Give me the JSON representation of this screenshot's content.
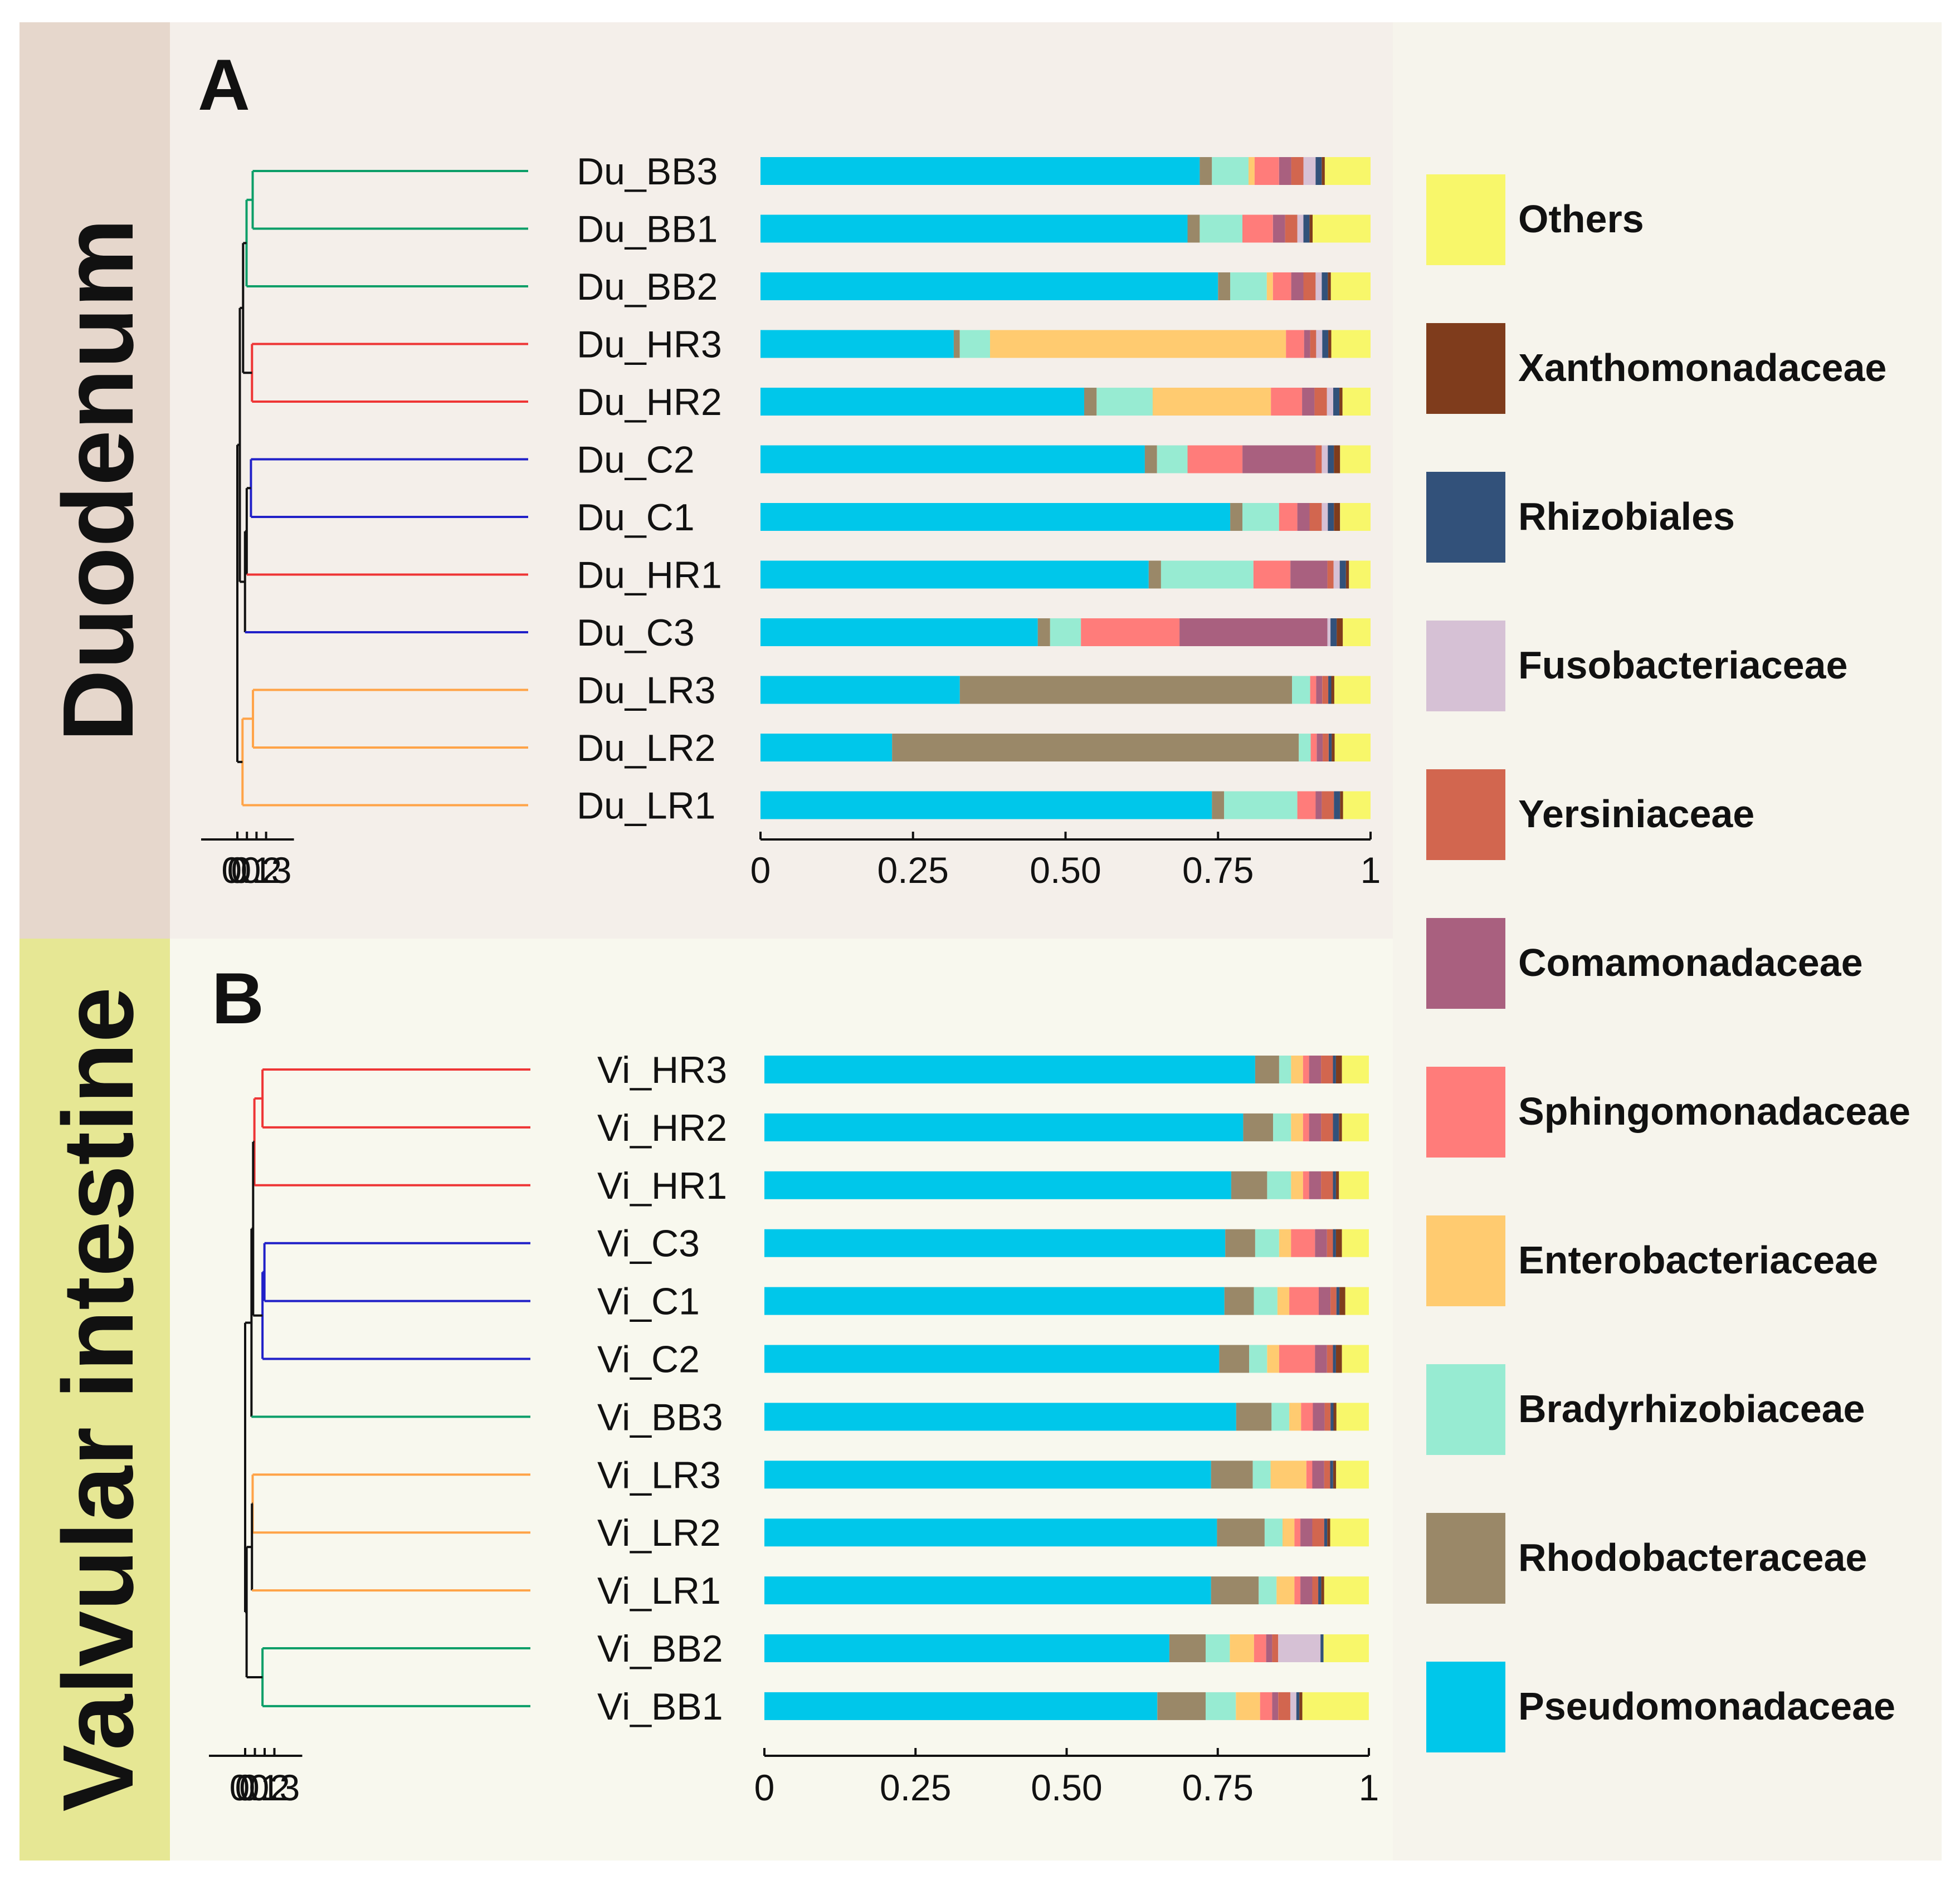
{
  "colors": {
    "Pseudomonadaceae": "#00C7EA",
    "Rhodobacteraceae": "#9A8868",
    "Bradyrhizobiaceae": "#97EBD2",
    "Enterobacteriaceae": "#FFCB70",
    "Sphingomonadaceae": "#FF7C7A",
    "Comamonadaceae": "#A9607F",
    "Yersiniaceae": "#D2664F",
    "Fusobacteriaceae": "#D6C1D5",
    "Rhizobiales": "#32517A",
    "Xanthomonadaceae": "#7F3C1C",
    "Others": "#F8F76A",
    "clade_green": "#0B9E68",
    "clade_red": "#EE3535",
    "clade_blue": "#2020C8",
    "clade_orange": "#FFA347",
    "tree_black": "#111111"
  },
  "chart_data": [
    {
      "panel": "A",
      "region": "Duodenum",
      "type": "bar",
      "orientation": "horizontal",
      "stacked": true,
      "xlim": [
        0,
        1
      ],
      "x_ticks": [
        "0",
        "0.25",
        "0.50",
        "0.75",
        "1"
      ],
      "tree_ticks": [
        "0",
        "0.1",
        "0.2",
        "0.3"
      ],
      "categories": [
        "Du_BB3",
        "Du_BB1",
        "Du_BB2",
        "Du_HR3",
        "Du_HR2",
        "Du_C2",
        "Du_C1",
        "Du_HR1",
        "Du_C3",
        "Du_LR3",
        "Du_LR2",
        "Du_LR1"
      ],
      "series": [
        {
          "name": "Pseudomonadaceae",
          "values": [
            0.72,
            0.7,
            0.75,
            0.32,
            0.52,
            0.63,
            0.77,
            0.63,
            0.45,
            0.33,
            0.22,
            0.74
          ]
        },
        {
          "name": "Rhodobacteraceae",
          "values": [
            0.02,
            0.02,
            0.02,
            0.01,
            0.02,
            0.02,
            0.02,
            0.02,
            0.02,
            0.55,
            0.68,
            0.02
          ]
        },
        {
          "name": "Bradyrhizobiaceae",
          "values": [
            0.06,
            0.07,
            0.06,
            0.05,
            0.09,
            0.05,
            0.06,
            0.15,
            0.05,
            0.03,
            0.02,
            0.12
          ]
        },
        {
          "name": "Enterobacteriaceae",
          "values": [
            0.01,
            0.0,
            0.01,
            0.49,
            0.19,
            0.0,
            0.0,
            0.0,
            0.0,
            0.0,
            0.0,
            0.0
          ]
        },
        {
          "name": "Sphingomonadaceae",
          "values": [
            0.04,
            0.05,
            0.03,
            0.03,
            0.05,
            0.09,
            0.03,
            0.06,
            0.16,
            0.01,
            0.01,
            0.03
          ]
        },
        {
          "name": "Comamonadaceae",
          "values": [
            0.02,
            0.02,
            0.02,
            0.01,
            0.02,
            0.12,
            0.02,
            0.06,
            0.24,
            0.01,
            0.01,
            0.01
          ]
        },
        {
          "name": "Yersiniaceae",
          "values": [
            0.02,
            0.02,
            0.02,
            0.01,
            0.02,
            0.01,
            0.02,
            0.01,
            0.0,
            0.01,
            0.01,
            0.02
          ]
        },
        {
          "name": "Fusobacteriaceae",
          "values": [
            0.02,
            0.01,
            0.01,
            0.01,
            0.01,
            0.01,
            0.01,
            0.01,
            0.005,
            0.0,
            0.0,
            0.0
          ]
        },
        {
          "name": "Rhizobiales",
          "values": [
            0.01,
            0.01,
            0.01,
            0.01,
            0.01,
            0.01,
            0.01,
            0.01,
            0.01,
            0.005,
            0.005,
            0.01
          ]
        },
        {
          "name": "Xanthomonadaceae",
          "values": [
            0.005,
            0.005,
            0.005,
            0.005,
            0.005,
            0.01,
            0.01,
            0.005,
            0.01,
            0.005,
            0.005,
            0.005
          ]
        },
        {
          "name": "Others",
          "values": [
            0.075,
            0.095,
            0.065,
            0.065,
            0.045,
            0.05,
            0.05,
            0.035,
            0.045,
            0.06,
            0.06,
            0.045
          ]
        }
      ],
      "tree": {
        "leaf_order": [
          "Du_BB3",
          "Du_BB1",
          "Du_BB2",
          "Du_HR3",
          "Du_HR2",
          "Du_C2",
          "Du_C1",
          "Du_HR1",
          "Du_C3",
          "Du_LR3",
          "Du_LR2",
          "Du_LR1"
        ],
        "tip_height": 0.31,
        "nodes": [
          {
            "id": "n1",
            "children": [
              "Du_BB3",
              "Du_BB1"
            ],
            "height": 0.16,
            "color": "clade_green"
          },
          {
            "id": "n2",
            "children": [
              "n1",
              "Du_BB2"
            ],
            "height": 0.096,
            "color": "clade_green"
          },
          {
            "id": "n3",
            "children": [
              "Du_HR3",
              "Du_HR2"
            ],
            "height": 0.153,
            "color": "clade_red"
          },
          {
            "id": "n4",
            "children": [
              "n2",
              "n3"
            ],
            "height": 0.06,
            "color": "tree_black"
          },
          {
            "id": "n5",
            "children": [
              "Du_C2",
              "Du_C1"
            ],
            "height": 0.142,
            "color": "clade_blue"
          },
          {
            "id": "n6",
            "children": [
              "n5",
              "Du_HR1"
            ],
            "height": 0.098,
            "color": "tree_black"
          },
          {
            "id": "n7",
            "children": [
              "n6",
              "Du_C3"
            ],
            "height": 0.08,
            "color": "tree_black"
          },
          {
            "id": "n8",
            "children": [
              "n4",
              "n7"
            ],
            "height": 0.026,
            "color": "tree_black"
          },
          {
            "id": "n9",
            "children": [
              "Du_LR3",
              "Du_LR2"
            ],
            "height": 0.163,
            "color": "clade_orange"
          },
          {
            "id": "n10",
            "children": [
              "n9",
              "Du_LR1"
            ],
            "height": 0.054,
            "color": "clade_orange"
          },
          {
            "id": "n11",
            "children": [
              "n8",
              "n10"
            ],
            "height": 0.0,
            "color": "tree_black"
          }
        ],
        "leaf_colors": {
          "Du_BB3": "clade_green",
          "Du_BB1": "clade_green",
          "Du_BB2": "clade_green",
          "Du_HR3": "clade_red",
          "Du_HR2": "clade_red",
          "Du_C2": "clade_blue",
          "Du_C1": "clade_blue",
          "Du_HR1": "clade_red",
          "Du_C3": "clade_blue",
          "Du_LR3": "clade_orange",
          "Du_LR2": "clade_orange",
          "Du_LR1": "clade_orange"
        }
      }
    },
    {
      "panel": "B",
      "region": "Valvular intestine",
      "type": "bar",
      "orientation": "horizontal",
      "stacked": true,
      "xlim": [
        0,
        1
      ],
      "x_ticks": [
        "0",
        "0.25",
        "0.50",
        "0.75",
        "1"
      ],
      "tree_ticks": [
        "0",
        "0.1",
        "0.2",
        "0.3"
      ],
      "categories": [
        "Vi_HR3",
        "Vi_HR2",
        "Vi_HR1",
        "Vi_C3",
        "Vi_C1",
        "Vi_C2",
        "Vi_BB3",
        "Vi_LR3",
        "Vi_LR2",
        "Vi_LR1",
        "Vi_BB2",
        "Vi_BB1"
      ],
      "series": [
        {
          "name": "Pseudomonadaceae",
          "values": [
            0.82,
            0.8,
            0.78,
            0.77,
            0.78,
            0.76,
            0.8,
            0.75,
            0.76,
            0.75,
            0.67,
            0.65
          ]
        },
        {
          "name": "Rhodobacteraceae",
          "values": [
            0.04,
            0.05,
            0.06,
            0.05,
            0.05,
            0.05,
            0.06,
            0.07,
            0.08,
            0.08,
            0.06,
            0.08
          ]
        },
        {
          "name": "Bradyrhizobiaceae",
          "values": [
            0.02,
            0.03,
            0.04,
            0.04,
            0.04,
            0.03,
            0.03,
            0.03,
            0.03,
            0.03,
            0.04,
            0.05
          ]
        },
        {
          "name": "Enterobacteriaceae",
          "values": [
            0.02,
            0.02,
            0.02,
            0.02,
            0.02,
            0.02,
            0.02,
            0.06,
            0.02,
            0.03,
            0.04,
            0.04
          ]
        },
        {
          "name": "Sphingomonadaceae",
          "values": [
            0.01,
            0.01,
            0.01,
            0.04,
            0.05,
            0.06,
            0.02,
            0.01,
            0.01,
            0.01,
            0.02,
            0.02
          ]
        },
        {
          "name": "Comamonadaceae",
          "values": [
            0.02,
            0.02,
            0.02,
            0.02,
            0.02,
            0.02,
            0.02,
            0.02,
            0.02,
            0.02,
            0.01,
            0.01
          ]
        },
        {
          "name": "Yersiniaceae",
          "values": [
            0.02,
            0.02,
            0.02,
            0.01,
            0.01,
            0.01,
            0.01,
            0.01,
            0.02,
            0.01,
            0.01,
            0.02
          ]
        },
        {
          "name": "Fusobacteriaceae",
          "values": [
            0.0,
            0.0,
            0.0,
            0.0,
            0.0,
            0.0,
            0.0,
            0.0,
            0.0,
            0.0,
            0.07,
            0.01
          ]
        },
        {
          "name": "Rhizobiales",
          "values": [
            0.005,
            0.01,
            0.005,
            0.005,
            0.005,
            0.005,
            0.005,
            0.005,
            0.005,
            0.005,
            0.005,
            0.005
          ]
        },
        {
          "name": "Xanthomonadaceae",
          "values": [
            0.01,
            0.005,
            0.005,
            0.01,
            0.01,
            0.01,
            0.005,
            0.005,
            0.005,
            0.005,
            0.0,
            0.005
          ]
        },
        {
          "name": "Others",
          "values": [
            0.045,
            0.045,
            0.05,
            0.045,
            0.04,
            0.045,
            0.055,
            0.055,
            0.065,
            0.075,
            0.075,
            0.11
          ]
        }
      ],
      "tree": {
        "leaf_order": [
          "Vi_HR3",
          "Vi_HR2",
          "Vi_HR1",
          "Vi_C3",
          "Vi_C1",
          "Vi_C2",
          "Vi_BB3",
          "Vi_LR3",
          "Vi_LR2",
          "Vi_LR1",
          "Vi_BB2",
          "Vi_BB1"
        ],
        "tip_height": 0.3,
        "nodes": [
          {
            "id": "m1",
            "children": [
              "Vi_HR3",
              "Vi_HR2"
            ],
            "height": 0.178,
            "color": "clade_red"
          },
          {
            "id": "m2",
            "children": [
              "m1",
              "Vi_HR1"
            ],
            "height": 0.095,
            "color": "clade_red"
          },
          {
            "id": "m3",
            "children": [
              "Vi_C3",
              "Vi_C1"
            ],
            "height": 0.198,
            "color": "clade_blue"
          },
          {
            "id": "m4",
            "children": [
              "m3",
              "Vi_C2"
            ],
            "height": 0.178,
            "color": "clade_blue"
          },
          {
            "id": "m5",
            "children": [
              "m2",
              "m4"
            ],
            "height": 0.082,
            "color": "tree_black"
          },
          {
            "id": "m6",
            "children": [
              "m5",
              "Vi_BB3"
            ],
            "height": 0.065,
            "color": "tree_black"
          },
          {
            "id": "m7",
            "children": [
              "Vi_LR3",
              "Vi_LR2"
            ],
            "height": 0.077,
            "color": "clade_orange"
          },
          {
            "id": "m8",
            "children": [
              "m7",
              "Vi_LR1"
            ],
            "height": 0.07,
            "color": "tree_black"
          },
          {
            "id": "m9",
            "children": [
              "Vi_BB2",
              "Vi_BB1"
            ],
            "height": 0.178,
            "color": "clade_green"
          },
          {
            "id": "m10",
            "children": [
              "m8",
              "m9"
            ],
            "height": 0.015,
            "color": "tree_black"
          },
          {
            "id": "m11",
            "children": [
              "m6",
              "m10"
            ],
            "height": 0.0,
            "color": "tree_black"
          }
        ],
        "leaf_colors": {
          "Vi_HR3": "clade_red",
          "Vi_HR2": "clade_red",
          "Vi_HR1": "clade_red",
          "Vi_C3": "clade_blue",
          "Vi_C1": "clade_blue",
          "Vi_C2": "clade_blue",
          "Vi_BB3": "clade_green",
          "Vi_LR3": "clade_orange",
          "Vi_LR2": "clade_orange",
          "Vi_LR1": "clade_orange",
          "Vi_BB2": "clade_green",
          "Vi_BB1": "clade_green"
        }
      }
    }
  ],
  "panels": {
    "a": {
      "letter": "A",
      "side_title": "Duodenum"
    },
    "b": {
      "letter": "B",
      "side_title": "Valvular intestine"
    }
  },
  "legend": {
    "items": [
      "Others",
      "Xanthomonadaceae",
      "Rhizobiales",
      "Fusobacteriaceae",
      "Yersiniaceae",
      "Comamonadaceae",
      "Sphingomonadaceae",
      "Enterobacteriaceae",
      "Bradyrhizobiaceae",
      "Rhodobacteraceae",
      "Pseudomonadaceae"
    ]
  }
}
